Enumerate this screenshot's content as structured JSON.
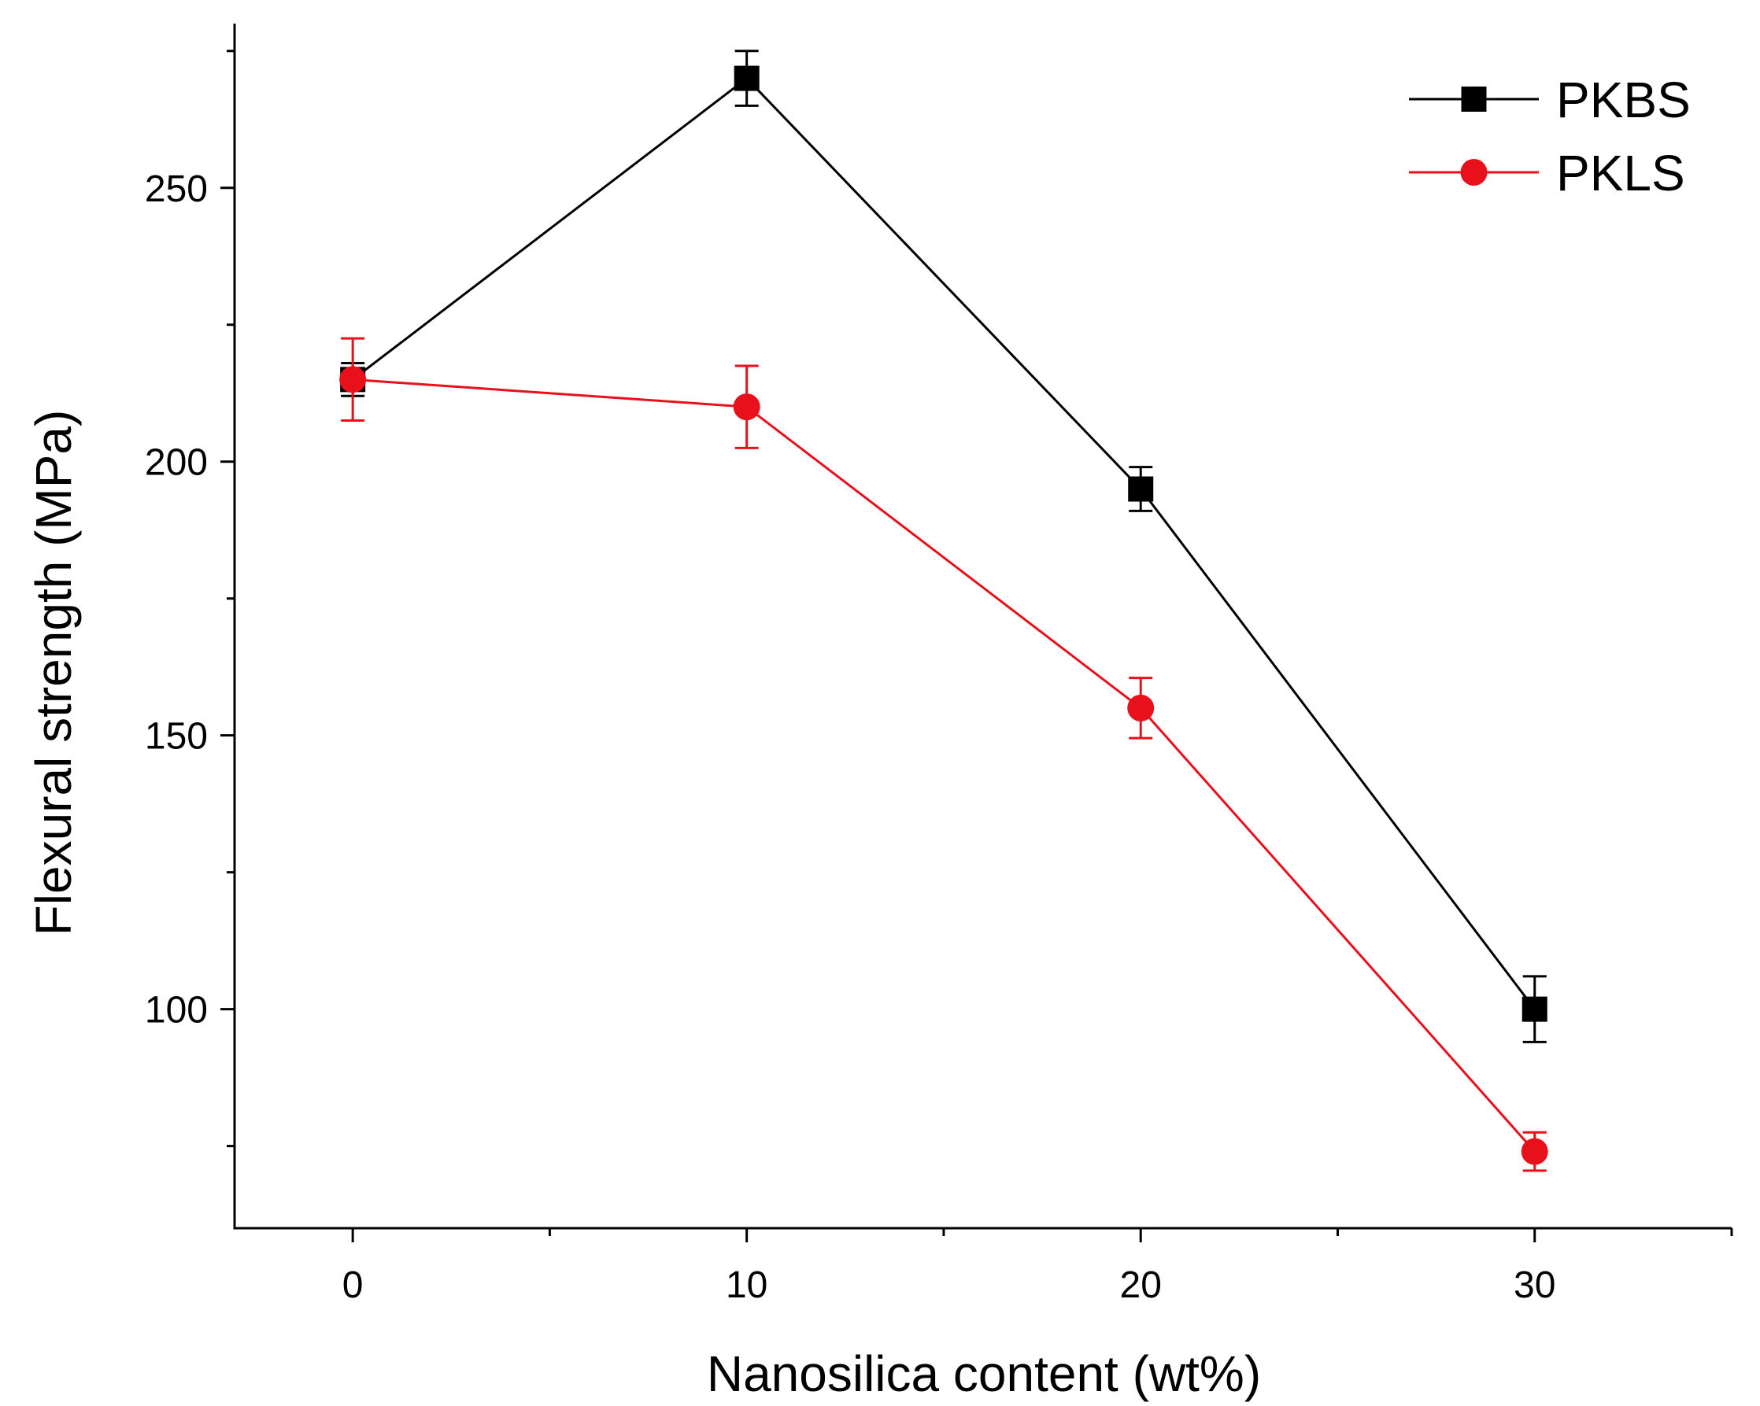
{
  "chart_data": {
    "type": "line",
    "title": "",
    "xlabel": "Nanosilica content (wt%)",
    "ylabel": "Flexural strength (MPa)",
    "xlim": [
      -3,
      35
    ],
    "ylim": [
      60,
      280
    ],
    "xticks": [
      0,
      10,
      20,
      30
    ],
    "xtick_labels": [
      "0",
      "10",
      "20",
      "30"
    ],
    "xminor": [
      5,
      15,
      25,
      35
    ],
    "yticks": [
      100,
      150,
      200,
      250
    ],
    "ytick_labels": [
      "100",
      "150",
      "200",
      "250"
    ],
    "yminor": [
      75,
      125,
      175,
      225,
      275
    ],
    "grid": false,
    "legend_position": "top-right",
    "x": [
      0,
      10,
      20,
      30
    ],
    "series": [
      {
        "name": "PKBS",
        "color": "#000000",
        "marker": "square",
        "values": [
          215,
          270,
          195,
          100
        ],
        "errors": [
          3,
          5,
          4,
          6
        ]
      },
      {
        "name": "PKLS",
        "color": "#e8101a",
        "marker": "circle",
        "values": [
          215,
          210,
          155,
          74
        ],
        "errors": [
          7.5,
          7.5,
          5.5,
          3.5
        ]
      }
    ]
  }
}
